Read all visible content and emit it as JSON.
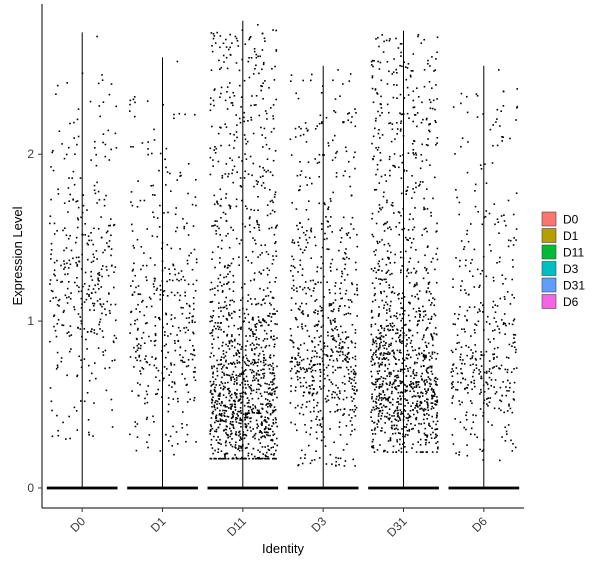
{
  "chart_data": {
    "type": "scatter",
    "subtype": "violin-jitter",
    "xlabel": "Identity",
    "ylabel": "Expression Level",
    "ylim": [
      -0.12,
      2.9
    ],
    "yticks": [
      0,
      1,
      2
    ],
    "categories": [
      "D0",
      "D1",
      "D11",
      "D3",
      "D31",
      "D6"
    ],
    "zero_baseline_value": 0,
    "series": [
      {
        "name": "D0",
        "color": "#F8766D",
        "max": 2.73,
        "n_points": 360,
        "median_expressed": 1.2,
        "spread_min": 0.28,
        "spread_max": 2.5
      },
      {
        "name": "D1",
        "color": "#B79F00",
        "max": 2.58,
        "n_points": 380,
        "median_expressed": 0.9,
        "spread_min": 0.2,
        "spread_max": 2.35
      },
      {
        "name": "D11",
        "color": "#00BA38",
        "max": 2.8,
        "n_points": 1300,
        "median_expressed": 0.5,
        "spread_min": 0.18,
        "spread_max": 2.75
      },
      {
        "name": "D3",
        "color": "#00BFC4",
        "max": 2.53,
        "n_points": 700,
        "median_expressed": 0.8,
        "spread_min": 0.13,
        "spread_max": 2.5
      },
      {
        "name": "D31",
        "color": "#619CFF",
        "max": 2.74,
        "n_points": 1200,
        "median_expressed": 0.65,
        "spread_min": 0.22,
        "spread_max": 2.72
      },
      {
        "name": "D6",
        "color": "#F564E3",
        "max": 2.53,
        "n_points": 400,
        "median_expressed": 0.75,
        "spread_min": 0.17,
        "spread_max": 2.4
      }
    ],
    "legend": {
      "position": "right",
      "entries": [
        "D0",
        "D1",
        "D11",
        "D3",
        "D31",
        "D6"
      ]
    },
    "grid": false
  }
}
